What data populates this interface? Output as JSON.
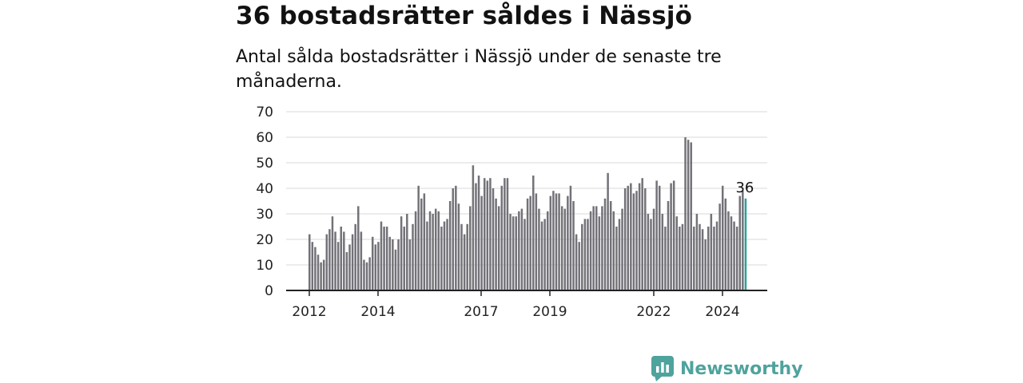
{
  "chart_data": {
    "type": "bar",
    "title": "36 bostadsrätter såldes i Nässjö",
    "subtitle": "Antal sålda bostadsrätter i Nässjö under de senaste tre månaderna.",
    "xlabel": "",
    "ylabel": "",
    "ylim": [
      0,
      70
    ],
    "yticks": [
      0,
      10,
      20,
      30,
      40,
      50,
      60,
      70
    ],
    "xtick_labels": [
      "2012",
      "2014",
      "2017",
      "2019",
      "2022",
      "2024"
    ],
    "grid": true,
    "end_label": "36",
    "colors": {
      "bar": "#737278",
      "highlight": "#2aa198",
      "grid": "#d9d9d9",
      "axis": "#222222"
    },
    "values": [
      22,
      19,
      17,
      14,
      11,
      12,
      22,
      24,
      29,
      23,
      19,
      25,
      23,
      15,
      18,
      22,
      26,
      33,
      23,
      12,
      11,
      13,
      21,
      18,
      19,
      27,
      25,
      25,
      21,
      20,
      16,
      20,
      29,
      25,
      30,
      20,
      26,
      31,
      41,
      36,
      38,
      27,
      31,
      30,
      32,
      31,
      25,
      27,
      28,
      35,
      40,
      41,
      34,
      26,
      22,
      26,
      33,
      49,
      42,
      45,
      37,
      44,
      43,
      44,
      40,
      36,
      33,
      41,
      44,
      44,
      30,
      29,
      29,
      31,
      32,
      28,
      36,
      37,
      45,
      38,
      32,
      27,
      28,
      31,
      37,
      39,
      38,
      38,
      33,
      32,
      37,
      41,
      35,
      22,
      19,
      26,
      28,
      28,
      31,
      33,
      33,
      29,
      33,
      36,
      46,
      35,
      31,
      25,
      28,
      32,
      40,
      41,
      42,
      38,
      39,
      42,
      44,
      40,
      30,
      28,
      32,
      43,
      41,
      30,
      25,
      35,
      42,
      43,
      29,
      25,
      26,
      60,
      59,
      58,
      25,
      30,
      26,
      24,
      20,
      25,
      30,
      25,
      27,
      34,
      41,
      36,
      31,
      29,
      27,
      25,
      37,
      39,
      36
    ]
  },
  "brand": {
    "name": "Newsworthy",
    "icon": "newsworthy-logo-icon",
    "color": "#4fa39d"
  }
}
